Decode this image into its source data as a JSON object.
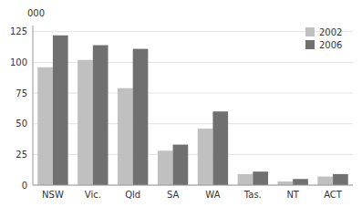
{
  "chart_data": {
    "type": "bar",
    "categories": [
      "NSW",
      "Vic.",
      "Qld",
      "SA",
      "WA",
      "Tas.",
      "NT",
      "ACT"
    ],
    "series": [
      {
        "name": "2002",
        "color": "#c0c0c0",
        "values": [
          96,
          102,
          79,
          28,
          46,
          9,
          3,
          7
        ]
      },
      {
        "name": "2006",
        "color": "#707070",
        "values": [
          122,
          114,
          111,
          33,
          60,
          11,
          5,
          9
        ]
      }
    ],
    "ylabel": "000",
    "ylim": [
      0,
      130
    ],
    "yticks": [
      0,
      25,
      50,
      75,
      100,
      125
    ],
    "grid": true,
    "legend": "upper right"
  }
}
